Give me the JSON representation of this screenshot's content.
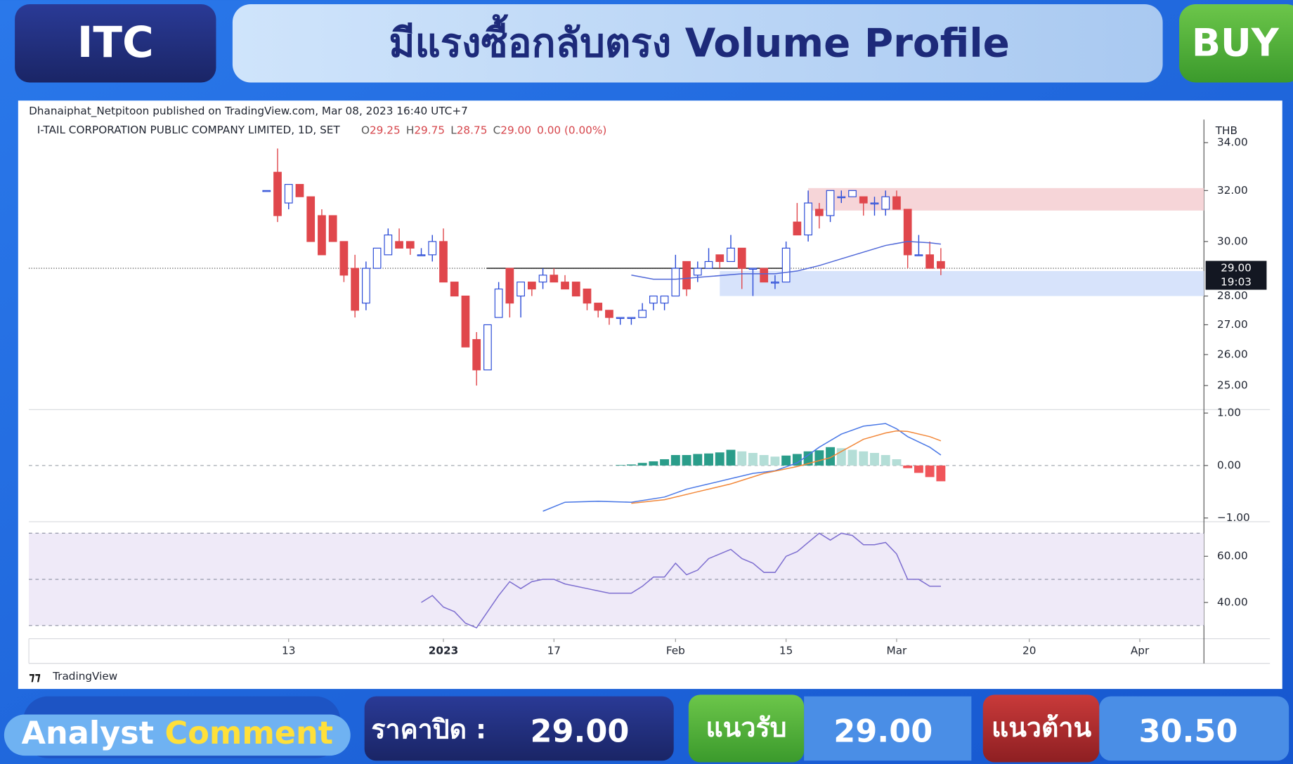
{
  "header": {
    "symbol": "ITC",
    "title": "มีแรงซื้อกลับตรง Volume Profile",
    "signal": "BUY"
  },
  "chart_data": [
    {
      "type": "candlestick",
      "published": "Dhanaiphat_Netpitoon published on TradingView.com, Mar 08, 2023 16:40 UTC+7",
      "instrument": "I-TAIL CORPORATION PUBLIC COMPANY LIMITED, 1D, SET",
      "legend_labels": [
        "O",
        "H",
        "L",
        "C"
      ],
      "legend_values": [
        "29.25",
        "29.75",
        "28.75",
        "29.00",
        "0.00 (0.00%)"
      ],
      "currency": "THB",
      "brand": "TradingView",
      "up_color": "#2a4bd7",
      "down_color": "#e0474c",
      "log_scale": true,
      "open": [
        32,
        32.75,
        31.5,
        32.25,
        31.75,
        31,
        31,
        30,
        29,
        27.75,
        29,
        29.5,
        30,
        30,
        29.5,
        29.5,
        30,
        28.5,
        28,
        26.5,
        25.5,
        27.25,
        29,
        28,
        28.5,
        28.5,
        28.75,
        28.5,
        28.5,
        28.25,
        27.75,
        27.5,
        27.25,
        27.25,
        27.25,
        27.75,
        27.75,
        28,
        29.25,
        28.75,
        29,
        29.5,
        29.25,
        29.75,
        29,
        29,
        28.5,
        28.5,
        30.75,
        30.25,
        31.25,
        31,
        31.75,
        31.75,
        31.75,
        31.5,
        31.25,
        31.75,
        31.25,
        29.5,
        29.5,
        29.25
      ],
      "high": [
        32,
        33.75,
        32.25,
        32.25,
        31.75,
        31.25,
        31,
        30,
        29.5,
        29.25,
        29.75,
        30.5,
        30.5,
        30,
        29.75,
        30.25,
        30.5,
        28.5,
        28,
        26.75,
        27,
        28.5,
        29,
        28.5,
        28.5,
        29,
        29,
        28.75,
        28.5,
        28.25,
        27.75,
        27.5,
        27.25,
        27.25,
        27.75,
        28,
        28,
        29.5,
        29.25,
        29.25,
        29.75,
        29.5,
        30.25,
        29.75,
        29,
        29,
        28.75,
        30,
        31.5,
        32,
        31.5,
        32,
        32,
        32,
        31.75,
        31.75,
        32,
        32,
        31.25,
        30.25,
        30,
        29.75
      ],
      "low": [
        32,
        30.75,
        31.25,
        31.75,
        30,
        29.5,
        30,
        28.5,
        27.25,
        27.5,
        29,
        29.5,
        29.75,
        29.5,
        29.5,
        29.25,
        28.5,
        28,
        26.25,
        25,
        25.5,
        27.25,
        27.25,
        27.25,
        28,
        28.25,
        28.5,
        28.25,
        28,
        27.5,
        27.25,
        27,
        27,
        27,
        27.25,
        27.5,
        27.5,
        28,
        28,
        28.5,
        29,
        29,
        29.25,
        28.25,
        28,
        28.5,
        28.25,
        28.5,
        30.25,
        30,
        30.5,
        30.75,
        31.5,
        31.75,
        31,
        31,
        31,
        31.25,
        29,
        29.5,
        29,
        28.75
      ],
      "close": [
        32,
        31,
        32.25,
        31.75,
        30,
        29.5,
        30,
        28.75,
        27.5,
        29,
        29.75,
        30.25,
        29.75,
        29.75,
        29.5,
        30,
        28.5,
        28,
        26.25,
        25.5,
        27,
        28.25,
        27.75,
        28.5,
        28.25,
        28.75,
        28.5,
        28.25,
        28,
        27.75,
        27.5,
        27.25,
        27.25,
        27.25,
        27.5,
        28,
        28,
        29,
        28.25,
        29,
        29.25,
        29.25,
        29.75,
        29,
        29,
        28.5,
        28.5,
        29.75,
        30.25,
        31.5,
        31,
        32,
        31.75,
        32,
        31.5,
        31.5,
        31.75,
        31.25,
        29.5,
        29.5,
        29,
        29
      ],
      "overlays": [
        {
          "color": "#5068d8",
          "x": [
            33,
            35,
            37,
            40,
            43,
            46,
            48,
            50,
            52,
            54,
            56,
            58,
            60,
            61
          ],
          "values": [
            28.75,
            28.6,
            28.6,
            28.7,
            28.8,
            28.8,
            28.9,
            29.1,
            29.35,
            29.6,
            29.85,
            30,
            29.95,
            29.9
          ]
        }
      ],
      "zones": [
        {
          "from": 31.2,
          "to": 32.1,
          "x_start": 49,
          "color": "#f6d5d8"
        },
        {
          "from": 28.0,
          "to": 28.9,
          "x_start": 41,
          "color": "#d7e3fb"
        }
      ],
      "lines": [
        {
          "value": 29,
          "x_start": 19.9,
          "x_end": 46.8,
          "color": "#111111"
        }
      ],
      "last_price": {
        "value": 29,
        "label": "29.00",
        "time": "19:03"
      },
      "xlim": [
        -21.5,
        84.8
      ],
      "xticks": [
        {
          "value": 2,
          "label": "13"
        },
        {
          "value": 16,
          "label": "2023"
        },
        {
          "value": 26,
          "label": "17"
        },
        {
          "value": 37,
          "label": "Feb"
        },
        {
          "value": 47,
          "label": "15"
        },
        {
          "value": 57,
          "label": "Mar"
        },
        {
          "value": 69,
          "label": "20"
        },
        {
          "value": 79,
          "label": "Apr"
        }
      ],
      "ylim": [
        24.25,
        34.9
      ],
      "yticks": [
        {
          "value": 25,
          "label": "25.00"
        },
        {
          "value": 26,
          "label": "26.00"
        },
        {
          "value": 27,
          "label": "27.00"
        },
        {
          "value": 28,
          "label": "28.00"
        },
        {
          "value": 30,
          "label": "30.00"
        },
        {
          "value": 32,
          "label": "32.00"
        },
        {
          "value": 34,
          "label": "34.00"
        }
      ]
    },
    {
      "type": "macd",
      "histogram": {
        "x": [
          32,
          33,
          34,
          35,
          36,
          37,
          38,
          39,
          40,
          41,
          42,
          43,
          44,
          45,
          46,
          47,
          48,
          49,
          50,
          51,
          52,
          53,
          54,
          55,
          56,
          57,
          58,
          59,
          60,
          61
        ],
        "values": [
          0.01,
          0.02,
          0.05,
          0.08,
          0.12,
          0.2,
          0.2,
          0.22,
          0.23,
          0.25,
          0.3,
          0.27,
          0.24,
          0.2,
          0.17,
          0.19,
          0.22,
          0.27,
          0.29,
          0.35,
          0.33,
          0.3,
          0.27,
          0.24,
          0.2,
          0.12,
          -0.05,
          -0.14,
          -0.22,
          -0.3
        ],
        "colors": {
          "up": "#2a9d8a",
          "up_fading": "#b4ded7",
          "down": "#f0555a",
          "down_fading": "#f7b7b9"
        }
      },
      "series": [
        {
          "color": "#4a78e6",
          "x": [
            25,
            27,
            30,
            33,
            36,
            38,
            40,
            42,
            44,
            46,
            48,
            50,
            52,
            54,
            56,
            57,
            58,
            60,
            61
          ],
          "values": [
            -0.87,
            -0.7,
            -0.68,
            -0.7,
            -0.6,
            -0.45,
            -0.35,
            -0.25,
            -0.15,
            -0.1,
            0.05,
            0.35,
            0.6,
            0.75,
            0.8,
            0.7,
            0.55,
            0.35,
            0.2
          ]
        },
        {
          "color": "#f2883a",
          "x": [
            33,
            36,
            39,
            42,
            45,
            48,
            51,
            54,
            56,
            57,
            58,
            60,
            61
          ],
          "values": [
            -0.72,
            -0.65,
            -0.5,
            -0.35,
            -0.15,
            -0.02,
            0.15,
            0.5,
            0.62,
            0.66,
            0.65,
            0.55,
            0.47
          ]
        }
      ],
      "levels": [
        0
      ],
      "ylim": [
        -1.07,
        1.05
      ],
      "yticks": [
        {
          "value": 1,
          "label": "1.00"
        },
        {
          "value": 0,
          "label": "0.00"
        },
        {
          "value": -1,
          "label": "−1.00"
        }
      ]
    },
    {
      "type": "line",
      "series": [
        {
          "color": "#7e6fd0",
          "x": [
            14,
            15,
            16,
            17,
            18,
            19,
            20,
            21,
            22,
            23,
            24,
            25,
            26,
            27,
            28,
            29,
            30,
            31,
            32,
            33,
            34,
            35,
            36,
            37,
            38,
            39,
            40,
            41,
            42,
            43,
            44,
            45,
            46,
            47,
            48,
            49,
            50,
            51,
            52,
            53,
            54,
            55,
            56,
            57,
            58,
            59,
            60,
            61
          ],
          "values": [
            40,
            43,
            38,
            36,
            31,
            29,
            36,
            43,
            49,
            46,
            49,
            50,
            50,
            48,
            47,
            46,
            45,
            44,
            44,
            44,
            47,
            51,
            51,
            57,
            52,
            54,
            59,
            61,
            63,
            59,
            57,
            53,
            53,
            60,
            62,
            66,
            70,
            67,
            70,
            69,
            65,
            65,
            66,
            61,
            50,
            50,
            47,
            47
          ]
        }
      ],
      "band": {
        "from": 30,
        "to": 70,
        "color": "#efeaf8"
      },
      "levels": [
        70,
        50,
        30
      ],
      "ylim": [
        24.3,
        75
      ],
      "yticks": [
        {
          "value": 60,
          "label": "60.00"
        },
        {
          "value": 40,
          "label": "40.00"
        }
      ]
    }
  ],
  "footer": {
    "label_1": "Analyst",
    "label_2": "Comment",
    "close_label": "ราคาปิด :",
    "close_value": "29.00",
    "support_label": "แนวรับ",
    "support_value": "29.00",
    "resistance_label": "แนวต้าน",
    "resistance_value": "30.50"
  }
}
